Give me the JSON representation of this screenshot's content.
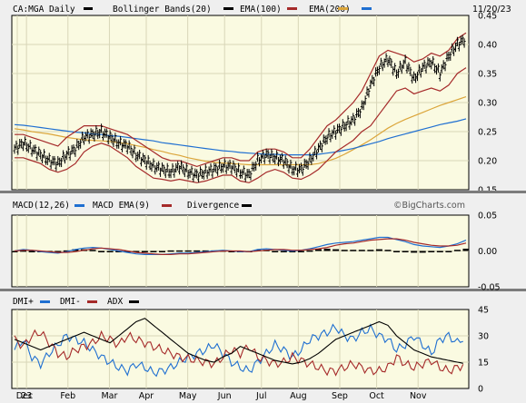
{
  "header": {
    "symbol": "CA:MGA Daily",
    "indicators": [
      {
        "label": "Bollinger Bands(20)",
        "color": "#000000"
      },
      {
        "label": "EMA(100)",
        "color": "#a52a2a"
      },
      {
        "label": "EMA(200)",
        "color": "#dba53a"
      },
      {
        "label": "",
        "color": "#1f6fd1"
      }
    ],
    "date": "11/20/23"
  },
  "watermark": "©BigCharts.com",
  "colors": {
    "plot_bg": "#fafae1",
    "page_bg": "#efefef",
    "grid": "#d8d6b8",
    "price": "#000000",
    "bollinger": "#a52a2a",
    "ema100": "#dba53a",
    "ema200": "#1f6fd1",
    "macd": "#1f6fd1",
    "macd_ema": "#a52a2a",
    "divergence": "#000000",
    "dmi_plus": "#1f6fd1",
    "dmi_minus": "#a52a2a",
    "adx": "#000000"
  },
  "chart_data": [
    {
      "type": "line",
      "name": "price",
      "x_labels": [
        "Dec",
        "23",
        "Feb",
        "Mar",
        "Apr",
        "May",
        "Jun",
        "Jul",
        "Aug",
        "Sep",
        "Oct",
        "Nov"
      ],
      "ylim": [
        0.15,
        0.45
      ],
      "yticks": [
        "0.15",
        "0.20",
        "0.25",
        "0.30",
        "0.35",
        "0.40",
        "0.45"
      ],
      "series": [
        {
          "name": "CA:MGA Daily",
          "values": [
            0.22,
            0.23,
            0.22,
            0.21,
            0.2,
            0.195,
            0.21,
            0.22,
            0.24,
            0.245,
            0.25,
            0.24,
            0.23,
            0.225,
            0.21,
            0.2,
            0.19,
            0.185,
            0.18,
            0.19,
            0.18,
            0.175,
            0.18,
            0.185,
            0.19,
            0.19,
            0.18,
            0.175,
            0.2,
            0.21,
            0.205,
            0.2,
            0.185,
            0.185,
            0.2,
            0.22,
            0.24,
            0.25,
            0.26,
            0.27,
            0.29,
            0.33,
            0.36,
            0.375,
            0.35,
            0.37,
            0.34,
            0.36,
            0.37,
            0.35,
            0.38,
            0.4,
            0.41
          ]
        },
        {
          "name": "EMA(100)",
          "values": [
            0.255,
            0.253,
            0.25,
            0.248,
            0.246,
            0.243,
            0.24,
            0.238,
            0.236,
            0.235,
            0.234,
            0.233,
            0.231,
            0.229,
            0.226,
            0.223,
            0.219,
            0.216,
            0.212,
            0.209,
            0.205,
            0.202,
            0.199,
            0.197,
            0.196,
            0.195,
            0.194,
            0.193,
            0.193,
            0.193,
            0.193,
            0.193,
            0.193,
            0.193,
            0.193,
            0.195,
            0.199,
            0.204,
            0.211,
            0.219,
            0.227,
            0.236,
            0.246,
            0.256,
            0.264,
            0.271,
            0.277,
            0.283,
            0.289,
            0.295,
            0.3,
            0.305,
            0.31
          ]
        },
        {
          "name": "EMA(200)",
          "values": [
            0.262,
            0.261,
            0.259,
            0.257,
            0.255,
            0.253,
            0.251,
            0.249,
            0.248,
            0.246,
            0.245,
            0.243,
            0.242,
            0.24,
            0.238,
            0.236,
            0.234,
            0.231,
            0.229,
            0.227,
            0.225,
            0.223,
            0.221,
            0.219,
            0.217,
            0.216,
            0.214,
            0.213,
            0.212,
            0.211,
            0.211,
            0.21,
            0.21,
            0.21,
            0.21,
            0.211,
            0.213,
            0.215,
            0.218,
            0.221,
            0.225,
            0.229,
            0.233,
            0.238,
            0.242,
            0.246,
            0.25,
            0.254,
            0.258,
            0.262,
            0.265,
            0.268,
            0.272
          ]
        },
        {
          "name": "Bollinger Upper",
          "values": [
            0.245,
            0.245,
            0.24,
            0.235,
            0.23,
            0.225,
            0.24,
            0.25,
            0.26,
            0.26,
            0.26,
            0.255,
            0.25,
            0.245,
            0.235,
            0.225,
            0.215,
            0.205,
            0.2,
            0.2,
            0.195,
            0.19,
            0.195,
            0.2,
            0.205,
            0.205,
            0.2,
            0.2,
            0.215,
            0.22,
            0.22,
            0.215,
            0.205,
            0.205,
            0.22,
            0.24,
            0.26,
            0.27,
            0.285,
            0.3,
            0.32,
            0.35,
            0.38,
            0.39,
            0.385,
            0.38,
            0.37,
            0.375,
            0.385,
            0.38,
            0.39,
            0.41,
            0.42
          ]
        },
        {
          "name": "Bollinger Lower",
          "values": [
            0.205,
            0.205,
            0.2,
            0.195,
            0.185,
            0.18,
            0.185,
            0.195,
            0.215,
            0.225,
            0.23,
            0.225,
            0.215,
            0.205,
            0.19,
            0.18,
            0.17,
            0.168,
            0.165,
            0.168,
            0.165,
            0.162,
            0.165,
            0.17,
            0.175,
            0.175,
            0.165,
            0.162,
            0.17,
            0.18,
            0.185,
            0.18,
            0.17,
            0.168,
            0.175,
            0.185,
            0.2,
            0.215,
            0.225,
            0.235,
            0.25,
            0.26,
            0.28,
            0.3,
            0.32,
            0.325,
            0.315,
            0.32,
            0.325,
            0.32,
            0.33,
            0.35,
            0.36
          ]
        }
      ]
    },
    {
      "type": "line",
      "name": "macd",
      "legend": [
        {
          "label": "MACD(12,26)",
          "color": "#000000"
        },
        {
          "label": "MACD EMA(9)",
          "color": "#1f6fd1"
        },
        {
          "label": "Divergence",
          "color": "#a52a2a"
        },
        {
          "label": "",
          "color": "#000000"
        }
      ],
      "ylim": [
        -0.05,
        0.05
      ],
      "yticks": [
        "-0.05",
        "0.00",
        "0.05"
      ],
      "series": [
        {
          "name": "MACD(12,26)",
          "values": [
            0.0,
            0.002,
            0.001,
            -0.001,
            -0.002,
            -0.003,
            -0.001,
            0.002,
            0.004,
            0.005,
            0.004,
            0.002,
            0.0,
            -0.002,
            -0.004,
            -0.005,
            -0.005,
            -0.005,
            -0.004,
            -0.003,
            -0.003,
            -0.002,
            -0.001,
            0.0,
            0.001,
            0.0,
            -0.001,
            -0.001,
            0.002,
            0.003,
            0.002,
            0.001,
            0.0,
            0.001,
            0.003,
            0.006,
            0.009,
            0.011,
            0.012,
            0.013,
            0.015,
            0.017,
            0.019,
            0.019,
            0.016,
            0.013,
            0.009,
            0.007,
            0.006,
            0.005,
            0.007,
            0.01,
            0.015
          ]
        },
        {
          "name": "MACD EMA(9)",
          "values": [
            0.0,
            0.001,
            0.001,
            0.0,
            -0.001,
            -0.002,
            -0.002,
            -0.001,
            0.001,
            0.003,
            0.004,
            0.003,
            0.002,
            0.0,
            -0.002,
            -0.003,
            -0.004,
            -0.005,
            -0.005,
            -0.004,
            -0.004,
            -0.003,
            -0.002,
            -0.001,
            0.0,
            0.0,
            0.0,
            -0.001,
            0.0,
            0.001,
            0.002,
            0.002,
            0.001,
            0.001,
            0.002,
            0.003,
            0.005,
            0.008,
            0.01,
            0.011,
            0.013,
            0.015,
            0.016,
            0.017,
            0.017,
            0.015,
            0.012,
            0.01,
            0.008,
            0.007,
            0.007,
            0.008,
            0.011
          ]
        },
        {
          "name": "Divergence",
          "values": [
            0.0,
            0.001,
            0.0,
            -0.001,
            -0.001,
            -0.001,
            0.001,
            0.003,
            0.003,
            0.002,
            0.0,
            -0.001,
            -0.002,
            -0.002,
            -0.002,
            -0.002,
            -0.001,
            0.0,
            0.001,
            0.001,
            0.001,
            0.001,
            0.001,
            0.001,
            0.001,
            0.0,
            -0.001,
            0.0,
            0.002,
            0.002,
            0.0,
            -0.001,
            -0.001,
            0.0,
            0.001,
            0.003,
            0.004,
            0.003,
            0.002,
            0.002,
            0.002,
            0.002,
            0.003,
            0.002,
            -0.001,
            -0.002,
            -0.003,
            -0.003,
            -0.002,
            -0.002,
            0.0,
            0.002,
            0.004
          ]
        }
      ]
    },
    {
      "type": "line",
      "name": "dmi",
      "legend": [
        {
          "label": "DMI+",
          "color": "#1f6fd1"
        },
        {
          "label": "DMI-",
          "color": "#a52a2a"
        },
        {
          "label": "ADX",
          "color": "#000000"
        }
      ],
      "ylim": [
        0,
        45
      ],
      "yticks": [
        "0",
        "15",
        "30",
        "45"
      ],
      "series": [
        {
          "name": "DMI+",
          "values": [
            22,
            28,
            18,
            14,
            20,
            25,
            30,
            28,
            26,
            22,
            18,
            15,
            12,
            10,
            14,
            12,
            9,
            10,
            12,
            15,
            18,
            20,
            22,
            25,
            20,
            15,
            12,
            10,
            15,
            20,
            25,
            22,
            18,
            22,
            28,
            30,
            32,
            35,
            30,
            28,
            32,
            34,
            30,
            28,
            22,
            25,
            30,
            25,
            20,
            28,
            30,
            26,
            30
          ]
        },
        {
          "name": "DMI-",
          "values": [
            28,
            24,
            30,
            32,
            26,
            20,
            18,
            22,
            24,
            26,
            30,
            28,
            25,
            30,
            28,
            26,
            24,
            22,
            20,
            18,
            17,
            16,
            15,
            14,
            18,
            22,
            20,
            24,
            18,
            16,
            14,
            15,
            18,
            16,
            14,
            12,
            10,
            10,
            12,
            14,
            12,
            10,
            10,
            12,
            18,
            14,
            12,
            14,
            16,
            12,
            10,
            12,
            14
          ]
        },
        {
          "name": "ADX",
          "values": [
            28,
            26,
            24,
            22,
            24,
            26,
            28,
            30,
            32,
            30,
            28,
            26,
            30,
            34,
            38,
            40,
            36,
            32,
            28,
            24,
            20,
            18,
            16,
            15,
            18,
            20,
            24,
            22,
            20,
            18,
            16,
            15,
            14,
            15,
            17,
            20,
            24,
            28,
            30,
            32,
            34,
            36,
            38,
            36,
            30,
            26,
            22,
            20,
            18,
            17,
            16,
            15,
            14
          ]
        }
      ]
    }
  ]
}
